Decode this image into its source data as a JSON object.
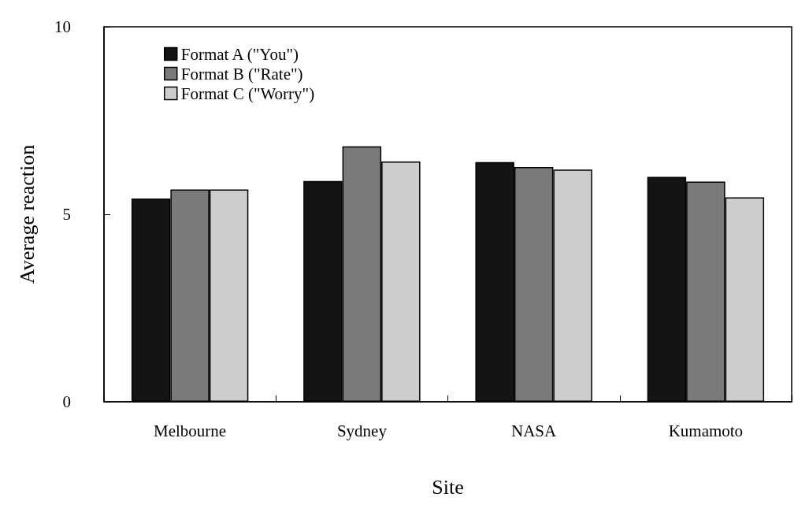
{
  "chart_data": {
    "type": "bar",
    "xlabel": "Site",
    "ylabel": "Average reaction",
    "categories": [
      "Melbourne",
      "Sydney",
      "NASA",
      "Kumamoto"
    ],
    "series": [
      {
        "name": "Format A (\"You\")",
        "color": "#141414",
        "values": [
          5.42,
          5.89,
          6.39,
          6.0
        ]
      },
      {
        "name": "Format B (\"Rate\")",
        "color": "#7a7a7a",
        "values": [
          5.66,
          6.81,
          6.26,
          5.87
        ]
      },
      {
        "name": "Format C (\"Worry\")",
        "color": "#cdcdcd",
        "values": [
          5.66,
          6.41,
          6.19,
          5.45
        ]
      }
    ],
    "ylim": [
      0,
      10
    ],
    "yticks": [
      0,
      5,
      10
    ],
    "grid": false,
    "legend": "top left"
  }
}
